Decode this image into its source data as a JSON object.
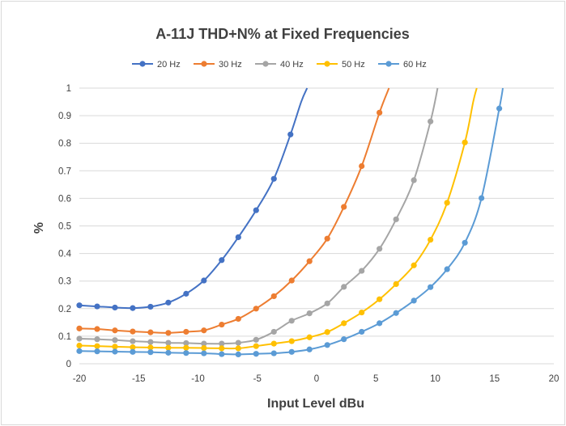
{
  "chart_data": {
    "type": "line",
    "title": "A-11J THD+N% at Fixed Frequencies",
    "xlabel": "Input  Level dBu",
    "ylabel": "%",
    "xlim": [
      -20,
      20
    ],
    "ylim": [
      0,
      1
    ],
    "xticks": [
      -20,
      -15,
      -10,
      -5,
      0,
      5,
      10,
      15,
      20
    ],
    "yticks": [
      0,
      0.1,
      0.2,
      0.3,
      0.4,
      0.5,
      0.6,
      0.7,
      0.8,
      0.9,
      1
    ],
    "grid": "horizontal",
    "legend_position": "top",
    "series": [
      {
        "name": "20 Hz",
        "color": "#4472c4",
        "points": [
          [
            -20,
            0.212
          ],
          [
            -18.5,
            0.208
          ],
          [
            -17,
            0.204
          ],
          [
            -15.5,
            0.202
          ],
          [
            -14,
            0.207
          ],
          [
            -12.5,
            0.222
          ],
          [
            -11,
            0.254
          ],
          [
            -9.5,
            0.302
          ],
          [
            -8,
            0.376
          ],
          [
            -6.6,
            0.459
          ],
          [
            -5.1,
            0.557
          ],
          [
            -3.6,
            0.671
          ],
          [
            -2.2,
            0.832
          ]
        ],
        "curve_extension": [
          [
            -1.3,
            0.95
          ],
          [
            -0.8,
            1.0
          ]
        ]
      },
      {
        "name": "30 Hz",
        "color": "#ed7d31",
        "points": [
          [
            -20,
            0.128
          ],
          [
            -18.5,
            0.126
          ],
          [
            -17,
            0.121
          ],
          [
            -15.5,
            0.117
          ],
          [
            -14,
            0.114
          ],
          [
            -12.5,
            0.112
          ],
          [
            -11,
            0.116
          ],
          [
            -9.5,
            0.121
          ],
          [
            -8,
            0.142
          ],
          [
            -6.6,
            0.163
          ],
          [
            -5.1,
            0.2
          ],
          [
            -3.6,
            0.245
          ],
          [
            -2.1,
            0.302
          ],
          [
            -0.6,
            0.372
          ],
          [
            0.9,
            0.454
          ],
          [
            2.3,
            0.569
          ],
          [
            3.8,
            0.717
          ],
          [
            5.3,
            0.911
          ]
        ],
        "curve_extension": [
          [
            6.1,
            1.0
          ]
        ]
      },
      {
        "name": "40 Hz",
        "color": "#a5a5a5",
        "points": [
          [
            -20,
            0.091
          ],
          [
            -18.5,
            0.089
          ],
          [
            -17,
            0.086
          ],
          [
            -15.5,
            0.082
          ],
          [
            -14,
            0.079
          ],
          [
            -12.5,
            0.076
          ],
          [
            -11,
            0.075
          ],
          [
            -9.5,
            0.073
          ],
          [
            -8,
            0.073
          ],
          [
            -6.6,
            0.076
          ],
          [
            -5.1,
            0.087
          ],
          [
            -3.6,
            0.116
          ],
          [
            -2.1,
            0.156
          ],
          [
            -0.6,
            0.183
          ],
          [
            0.9,
            0.219
          ],
          [
            2.3,
            0.279
          ],
          [
            3.8,
            0.337
          ],
          [
            5.3,
            0.417
          ],
          [
            6.7,
            0.524
          ],
          [
            8.2,
            0.666
          ],
          [
            9.6,
            0.879
          ]
        ],
        "curve_extension": [
          [
            10.2,
            1.0
          ]
        ]
      },
      {
        "name": "50 Hz",
        "color": "#ffc000",
        "points": [
          [
            -20,
            0.066
          ],
          [
            -18.5,
            0.064
          ],
          [
            -17,
            0.062
          ],
          [
            -15.5,
            0.06
          ],
          [
            -14,
            0.059
          ],
          [
            -12.5,
            0.058
          ],
          [
            -11,
            0.058
          ],
          [
            -9.5,
            0.057
          ],
          [
            -8,
            0.056
          ],
          [
            -6.6,
            0.056
          ],
          [
            -5.1,
            0.064
          ],
          [
            -3.6,
            0.073
          ],
          [
            -2.1,
            0.082
          ],
          [
            -0.6,
            0.096
          ],
          [
            0.9,
            0.115
          ],
          [
            2.3,
            0.147
          ],
          [
            3.8,
            0.186
          ],
          [
            5.3,
            0.234
          ],
          [
            6.7,
            0.289
          ],
          [
            8.2,
            0.357
          ],
          [
            9.6,
            0.45
          ],
          [
            11,
            0.584
          ],
          [
            12.5,
            0.803
          ]
        ],
        "curve_extension": [
          [
            13.2,
            0.95
          ],
          [
            13.5,
            1.0
          ]
        ]
      },
      {
        "name": "60 Hz",
        "color": "#5b9bd5",
        "points": [
          [
            -20,
            0.046
          ],
          [
            -18.5,
            0.045
          ],
          [
            -17,
            0.044
          ],
          [
            -15.5,
            0.043
          ],
          [
            -14,
            0.042
          ],
          [
            -12.5,
            0.04
          ],
          [
            -11,
            0.039
          ],
          [
            -9.5,
            0.038
          ],
          [
            -8,
            0.035
          ],
          [
            -6.6,
            0.034
          ],
          [
            -5.1,
            0.036
          ],
          [
            -3.6,
            0.038
          ],
          [
            -2.1,
            0.043
          ],
          [
            -0.6,
            0.052
          ],
          [
            0.9,
            0.068
          ],
          [
            2.3,
            0.089
          ],
          [
            3.8,
            0.116
          ],
          [
            5.3,
            0.147
          ],
          [
            6.7,
            0.184
          ],
          [
            8.2,
            0.229
          ],
          [
            9.6,
            0.278
          ],
          [
            11,
            0.343
          ],
          [
            12.5,
            0.439
          ],
          [
            13.9,
            0.601
          ],
          [
            15.4,
            0.926
          ]
        ],
        "curve_extension": [
          [
            15.7,
            1.0
          ]
        ]
      }
    ]
  }
}
